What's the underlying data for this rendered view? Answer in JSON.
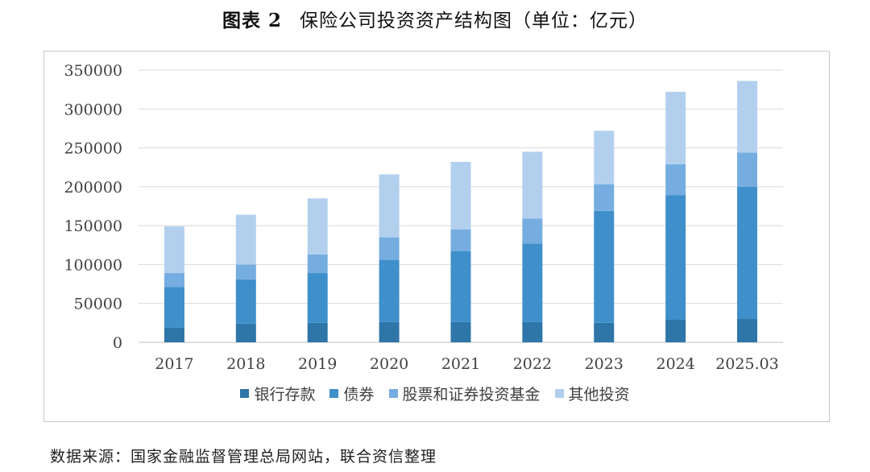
{
  "figure": {
    "number": "图表 2",
    "title": "保险公司投资资产结构图（单位：亿元）"
  },
  "source_note": "数据来源：国家金融监督管理总局网站，联合资信整理",
  "chart_data": {
    "type": "bar",
    "stacked": true,
    "title": "",
    "xlabel": "",
    "ylabel": "",
    "ylim": [
      0,
      350000
    ],
    "yticks": [
      0,
      50000,
      100000,
      150000,
      200000,
      250000,
      300000,
      350000
    ],
    "grid": true,
    "legend_position": "bottom",
    "categories": [
      "2017",
      "2018",
      "2019",
      "2020",
      "2021",
      "2022",
      "2023",
      "2024",
      "2025.03"
    ],
    "series": [
      {
        "name": "银行存款",
        "color": "#2e75a8",
        "values": [
          19000,
          24000,
          25000,
          26000,
          26000,
          26000,
          25000,
          29000,
          30000
        ]
      },
      {
        "name": "债券",
        "color": "#3f8fcb",
        "values": [
          52000,
          57000,
          64000,
          80000,
          91000,
          101000,
          144000,
          160000,
          170000
        ]
      },
      {
        "name": "股票和证券投资基金",
        "color": "#75ade0",
        "values": [
          18000,
          19000,
          24000,
          29000,
          28000,
          32000,
          34000,
          40000,
          44000
        ]
      },
      {
        "name": "其他投资",
        "color": "#b2d0ee",
        "values": [
          60000,
          64000,
          72000,
          81000,
          87000,
          86000,
          69000,
          93000,
          92000
        ]
      }
    ]
  }
}
